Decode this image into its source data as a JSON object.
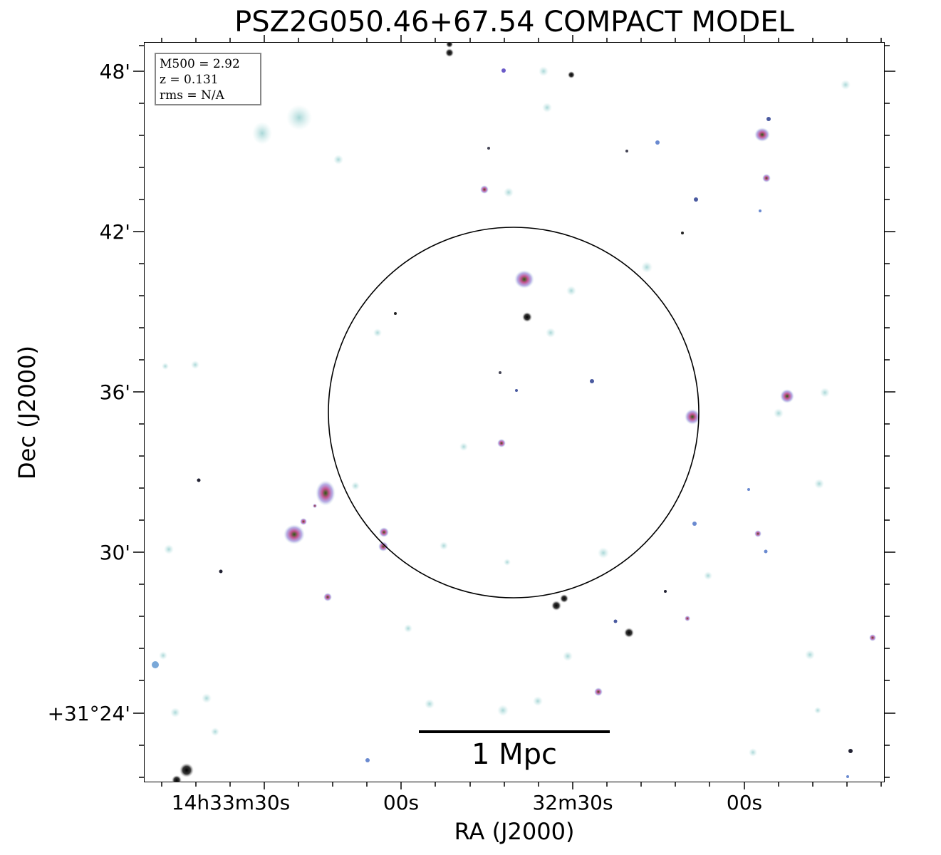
{
  "title": "PSZ2G050.46+67.54 COMPACT MODEL",
  "axes": {
    "xlabel": "RA (J2000)",
    "ylabel": "Dec (J2000)",
    "xticks": [
      "14h33m30s",
      "00s",
      "32m30s",
      "00s"
    ],
    "yticks": [
      "48'",
      "42'",
      "36'",
      "30'",
      "+31°24'"
    ]
  },
  "legend": {
    "m500": "M500 = 2.92",
    "z": "z = 0.131",
    "rms": "rms = N/A"
  },
  "scalebar": {
    "label": "1 Mpc"
  },
  "colors": {
    "background": "#ffffff",
    "halo": "#a8d8d8",
    "source_mid": "#c060c0",
    "source_core": "#000000"
  }
}
